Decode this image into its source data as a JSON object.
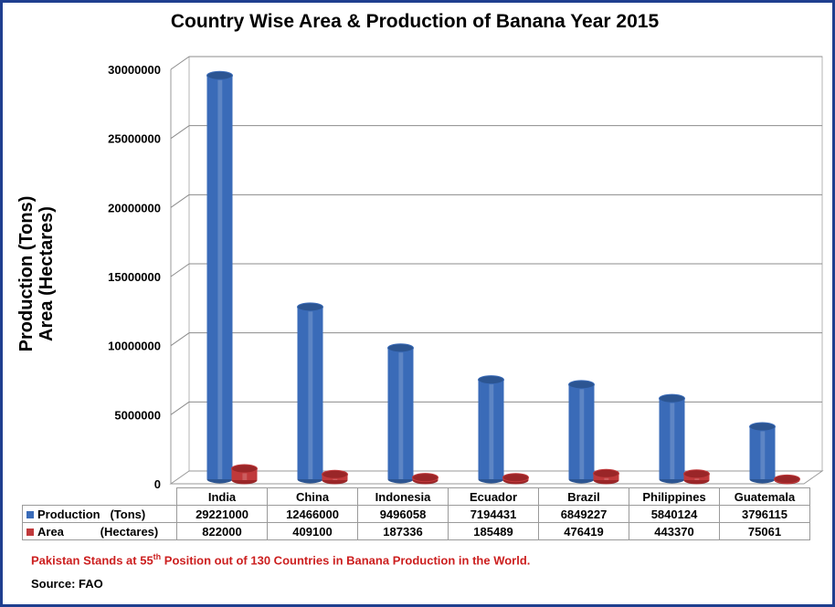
{
  "chart_data": {
    "type": "bar",
    "title": "Country Wise Area & Production of Banana Year 2015",
    "ylabel_line1": "Production (Tons)",
    "ylabel_line2": "Area (Hectares)",
    "categories": [
      "India",
      "China",
      "Indonesia",
      "Ecuador",
      "Brazil",
      "Philippines",
      "Guatemala"
    ],
    "series": [
      {
        "name": "Production (Tons)",
        "label_left": "Production",
        "label_right": "(Tons)",
        "color": "#3a6bb8",
        "values": [
          29221000,
          12466000,
          9496058,
          7194431,
          6849227,
          5840124,
          3796115
        ]
      },
      {
        "name": "Area (Hectares)",
        "label_left": "Area",
        "label_right": "(Hectares)",
        "color": "#c0393b",
        "values": [
          822000,
          409100,
          187336,
          185489,
          476419,
          443370,
          75061
        ]
      }
    ],
    "ylim": [
      0,
      30000000
    ],
    "yticks": [
      "0",
      "5000000",
      "10000000",
      "15000000",
      "20000000",
      "25000000",
      "30000000"
    ],
    "grid": true,
    "legend": "data-table"
  },
  "note": {
    "before": "Pakistan Stands at 55",
    "sup": "th",
    "after": " Position out of 130 Countries in Banana Production in the World."
  },
  "source": "Source: FAO"
}
